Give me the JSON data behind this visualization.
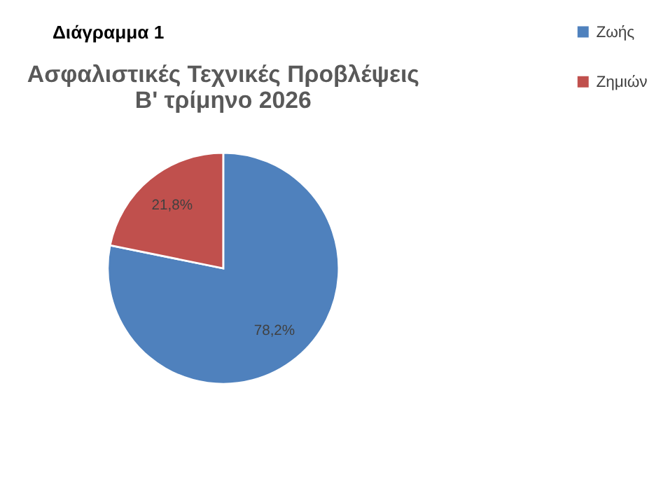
{
  "chart_data": {
    "type": "pie",
    "title": [
      "Ασφαλιστικές Τεχνικές Προβλέψεις",
      "Β' τρίμηνο 2026"
    ],
    "annotations": [
      "Διάγραμμα 1"
    ],
    "categories": [
      "Ζωής",
      "Ζημιών"
    ],
    "values": [
      78.2,
      21.8
    ],
    "colors": [
      "#4f81bd",
      "#c0504d"
    ],
    "value_labels": [
      "78,2%",
      "21,8%"
    ],
    "legend": "right"
  }
}
